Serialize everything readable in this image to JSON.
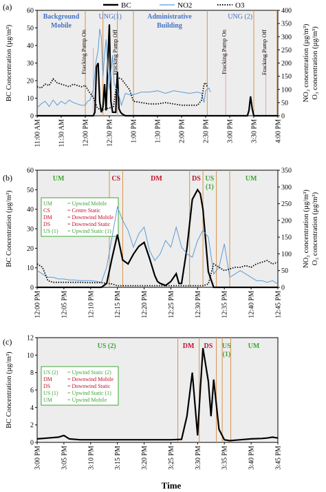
{
  "legend": [
    {
      "name": "BC",
      "color": "#000000",
      "style": "solid-thick"
    },
    {
      "name": "NO2",
      "color": "#5b9bd5",
      "style": "solid-thin"
    },
    {
      "name": "O3",
      "color": "#000000",
      "style": "dotted"
    }
  ],
  "xlabel": "Time",
  "colors": {
    "bc": "#000000",
    "no2": "#5b9bd5",
    "o3": "#000000",
    "marker": "#d6914a",
    "pink_marker": "#e8a0b0",
    "green": "#3fa535",
    "red": "#c0122c",
    "blue": "#4472c4",
    "plot_bg": "#ededed"
  },
  "chart_data": [
    {
      "panel": "(a)",
      "type": "line",
      "ylabel": "BC Concentration (µg/m³)",
      "y2label_lines": [
        "NO₂ concentration (µg/m³)",
        "O₃ concentration (µg/m³)"
      ],
      "ylim": [
        0,
        60
      ],
      "yticks": [
        "0",
        "10",
        "20",
        "30",
        "40",
        "50",
        "60"
      ],
      "y2lim": [
        0,
        400
      ],
      "y2ticks": [
        "0",
        "50",
        "100",
        "150",
        "200",
        "250",
        "300",
        "350",
        "400"
      ],
      "xlim": [
        0,
        300
      ],
      "x_tick_labels": [
        "11:00 AM",
        "11:30 AM",
        "12:00 PM",
        "12:30 PM",
        "1:00 PM",
        "1:30 PM",
        "2:00 PM",
        "2:30 PM",
        "3:00 PM",
        "3:30 PM",
        "4:00 PM"
      ],
      "x_tick_values": [
        0,
        30,
        60,
        90,
        120,
        150,
        180,
        210,
        240,
        270,
        300
      ],
      "markers": [
        {
          "x": 60,
          "color": "orange"
        },
        {
          "x": 82,
          "color": "orange"
        },
        {
          "x": 100,
          "color": "orange"
        },
        {
          "x": 120,
          "color": "orange"
        },
        {
          "x": 212,
          "color": "orange"
        },
        {
          "x": 270,
          "color": "orange"
        },
        {
          "x": 299,
          "color": "orange"
        }
      ],
      "pink_markers": [
        {
          "x": 70
        },
        {
          "x": 100
        },
        {
          "x": 235
        },
        {
          "x": 285
        }
      ],
      "region_labels": [
        {
          "lines": [
            "Background",
            "Mobile"
          ],
          "x": 30,
          "color": "blue",
          "bold": true
        },
        {
          "lines": [
            "UNG(1)"
          ],
          "x": 91,
          "color": "blue",
          "bold": false
        },
        {
          "lines": [
            "Administrative",
            "Building"
          ],
          "x": 165,
          "color": "blue",
          "bold": true
        },
        {
          "lines": [
            "UNG (2)"
          ],
          "x": 253,
          "color": "blue",
          "bold": false
        }
      ],
      "annotations": [
        {
          "text": "Fracking Pump On",
          "x": 62
        },
        {
          "text": "Fracking Pump Off",
          "x": 101
        },
        {
          "text": "Fracking Pump On",
          "x": 237
        },
        {
          "text": "Fracking Pump Off",
          "x": 287
        }
      ],
      "series": [
        {
          "name": "BC",
          "axis": "left",
          "x": [
            0,
            55,
            60,
            65,
            70,
            72,
            74,
            76,
            78,
            80,
            82,
            84,
            86,
            88,
            90,
            92,
            94,
            96,
            98,
            100,
            102,
            104,
            106,
            110,
            115,
            200,
            240,
            262,
            264,
            266,
            268,
            270,
            275,
            300
          ],
          "y": [
            0,
            0,
            0,
            0,
            0,
            2,
            28,
            30,
            8,
            2,
            5,
            18,
            3,
            30,
            52,
            8,
            2,
            2,
            2,
            25,
            4,
            2,
            1,
            0,
            0,
            0,
            0,
            0,
            3,
            11,
            4,
            0,
            0,
            0
          ]
        },
        {
          "name": "NO2",
          "axis": "right",
          "x": [
            0,
            5,
            10,
            15,
            20,
            25,
            30,
            35,
            40,
            45,
            50,
            55,
            60,
            63,
            66,
            70,
            73,
            76,
            78,
            80,
            82,
            84,
            86,
            88,
            90,
            92,
            94,
            96,
            100,
            105,
            110,
            115,
            120,
            125,
            130,
            140,
            150,
            160,
            170,
            180,
            190,
            200,
            205,
            208,
            210,
            212,
            214,
            216
          ],
          "y": [
            30,
            45,
            55,
            35,
            60,
            40,
            55,
            45,
            60,
            50,
            45,
            40,
            40,
            55,
            60,
            100,
            200,
            250,
            330,
            300,
            150,
            230,
            290,
            180,
            100,
            170,
            230,
            120,
            100,
            40,
            85,
            80,
            80,
            85,
            90,
            90,
            95,
            85,
            95,
            90,
            85,
            90,
            85,
            50,
            95,
            100,
            105,
            90
          ]
        },
        {
          "name": "O3",
          "axis": "right",
          "x": [
            0,
            5,
            10,
            15,
            20,
            25,
            30,
            35,
            40,
            45,
            50,
            55,
            60,
            65,
            70,
            75,
            80,
            85,
            90,
            95,
            100,
            105,
            110,
            115,
            120,
            130,
            140,
            150,
            160,
            170,
            180,
            190,
            200,
            205,
            208,
            210,
            212
          ],
          "y": [
            110,
            105,
            120,
            115,
            140,
            125,
            120,
            115,
            110,
            120,
            115,
            110,
            115,
            90,
            70,
            30,
            20,
            25,
            30,
            30,
            145,
            140,
            120,
            100,
            55,
            50,
            45,
            45,
            50,
            45,
            40,
            40,
            40,
            60,
            120,
            125,
            110
          ]
        }
      ]
    },
    {
      "panel": "(b)",
      "type": "line",
      "ylabel": "BC Concentration (µg/m³)",
      "y2label_lines": [
        "NO₂ concentration (µg/m³)",
        "O₃ concentration (µg/m³)"
      ],
      "ylim": [
        0,
        60
      ],
      "yticks": [
        "0",
        "10",
        "20",
        "30",
        "40",
        "50",
        "60"
      ],
      "y2lim": [
        0,
        350
      ],
      "y2ticks": [
        "0",
        "50",
        "100",
        "150",
        "200",
        "250",
        "300",
        "350"
      ],
      "xlim": [
        0,
        45
      ],
      "x_tick_labels": [
        "12:00 PM",
        "12:05 PM",
        "12:10 PM",
        "12:15 PM",
        "12:20 PM",
        "12:25 PM",
        "12:30 PM",
        "12:35 PM",
        "12:40 PM",
        "12:45 PM"
      ],
      "x_tick_values": [
        0,
        5,
        10,
        15,
        20,
        25,
        30,
        35,
        40,
        45
      ],
      "markers": [
        {
          "x": 13.5
        },
        {
          "x": 16
        },
        {
          "x": 28.5
        },
        {
          "x": 31
        },
        {
          "x": 33.5
        },
        {
          "x": 36
        }
      ],
      "region_labels": [
        {
          "text": "UM",
          "x": 4,
          "color": "green"
        },
        {
          "text": "CS",
          "x": 14.75,
          "color": "red"
        },
        {
          "text": "DM",
          "x": 22.3,
          "color": "red"
        },
        {
          "text": "DS",
          "x": 29.75,
          "color": "red"
        },
        {
          "text": "US",
          "x": 32.25,
          "color": "green"
        },
        {
          "text": "(1)",
          "x": 32.25,
          "color": "green"
        },
        {
          "text": "UM",
          "x": 40,
          "color": "green"
        }
      ],
      "key_box": [
        {
          "abbr": "UM",
          "desc": "= Upwind Mobile",
          "color": "green"
        },
        {
          "abbr": "CS",
          "desc": "= Centre Static",
          "color": "red"
        },
        {
          "abbr": "DM",
          "desc": "= Downwind Mobile",
          "color": "red"
        },
        {
          "abbr": "DS",
          "desc": "= Downwind Static",
          "color": "red"
        },
        {
          "abbr": "US (1)",
          "desc": "= Upwind Static (1)",
          "color": "green"
        }
      ],
      "series": [
        {
          "name": "BC",
          "axis": "left",
          "x": [
            0,
            12,
            13,
            14,
            15,
            16,
            17,
            18,
            19,
            20,
            21,
            22,
            22.5,
            23,
            24,
            25,
            26,
            26.5,
            27,
            28,
            29,
            30,
            30.5,
            31,
            32,
            33,
            34,
            45
          ],
          "y": [
            0,
            0,
            2,
            15,
            27,
            14,
            12,
            17,
            21,
            23,
            15,
            6,
            3,
            2,
            1,
            3,
            7,
            2,
            2,
            20,
            45,
            50,
            48,
            40,
            8,
            0,
            0,
            0
          ]
        },
        {
          "name": "NO2",
          "axis": "right",
          "x": [
            0,
            1,
            2,
            3,
            4,
            5,
            6,
            7,
            8,
            9,
            10,
            11,
            12,
            13,
            14,
            15,
            16,
            17,
            18,
            19,
            20,
            21,
            22,
            23,
            24,
            25,
            26,
            27,
            28,
            29,
            30,
            31,
            32,
            33,
            34,
            35,
            36,
            37,
            38,
            39,
            40,
            41,
            42,
            43,
            44,
            45
          ],
          "y": [
            50,
            40,
            30,
            30,
            25,
            25,
            22,
            22,
            20,
            20,
            20,
            18,
            15,
            60,
            150,
            240,
            200,
            170,
            120,
            160,
            180,
            110,
            80,
            100,
            140,
            120,
            180,
            120,
            100,
            90,
            140,
            170,
            150,
            40,
            60,
            130,
            30,
            40,
            50,
            40,
            30,
            20,
            20,
            15,
            20,
            10
          ]
        },
        {
          "name": "O3",
          "axis": "right",
          "x": [
            0,
            1,
            2,
            3,
            5,
            8,
            10,
            12,
            13,
            14,
            15,
            16,
            18,
            20,
            22,
            24,
            26,
            27,
            28,
            29,
            30,
            31,
            32,
            33,
            34,
            35,
            36,
            37,
            38,
            39,
            40,
            41,
            42,
            43,
            44,
            45
          ],
          "y": [
            70,
            60,
            20,
            15,
            15,
            15,
            14,
            14,
            12,
            10,
            5,
            5,
            5,
            5,
            5,
            5,
            5,
            5,
            5,
            5,
            5,
            5,
            10,
            70,
            60,
            50,
            55,
            60,
            60,
            65,
            60,
            70,
            75,
            80,
            70,
            75
          ]
        }
      ]
    },
    {
      "panel": "(c)",
      "type": "line",
      "ylabel": "BC Concentration (µg/m³)",
      "ylim": [
        0,
        12
      ],
      "yticks": [
        "0",
        "2",
        "4",
        "6",
        "8",
        "10",
        "12"
      ],
      "xlim": [
        0,
        45
      ],
      "x_tick_labels": [
        "3:00 PM",
        "3:05 PM",
        "3:10 PM",
        "3:15 PM",
        "3:20 PM",
        "3:25 PM",
        "3:30 PM",
        "3:35 PM",
        "3:40 PM",
        "3:45 PM"
      ],
      "x_tick_values": [
        0,
        5,
        10,
        15,
        20,
        25,
        30,
        35,
        40,
        45
      ],
      "markers": [
        {
          "x": 26.3
        },
        {
          "x": 30.3
        },
        {
          "x": 33.5
        },
        {
          "x": 34.6
        },
        {
          "x": 36.2
        }
      ],
      "region_labels": [
        {
          "text": "US (2)",
          "x": 13,
          "color": "green"
        },
        {
          "text": "DM",
          "x": 28.3,
          "color": "red"
        },
        {
          "text": "DS",
          "x": 32,
          "color": "red"
        },
        {
          "text": "US",
          "x": 35.4,
          "color": "green"
        },
        {
          "text": "(1)",
          "x": 35.4,
          "color": "green"
        },
        {
          "text": "UM",
          "x": 40.5,
          "color": "green"
        }
      ],
      "key_box": [
        {
          "abbr": "US (2)",
          "desc": "= Upwind Static (2)",
          "color": "green"
        },
        {
          "abbr": "DM",
          "desc": "= Downwind Mobile",
          "color": "red"
        },
        {
          "abbr": "DS",
          "desc": "= Downwind Static",
          "color": "red"
        },
        {
          "abbr": "US (1)",
          "desc": "= Upwind Static (1)",
          "color": "green"
        },
        {
          "abbr": "UM",
          "desc": "= Upwind Mobile",
          "color": "green"
        }
      ],
      "series": [
        {
          "name": "BC",
          "axis": "left",
          "x": [
            0,
            2,
            4,
            5,
            6,
            8,
            10,
            15,
            20,
            25,
            27,
            28,
            29,
            30,
            30.5,
            31,
            32,
            32.5,
            33,
            34,
            35,
            36,
            38,
            40,
            42,
            43,
            44,
            45
          ],
          "y": [
            0.4,
            0.5,
            0.6,
            0.8,
            0.4,
            0.3,
            0.3,
            0.3,
            0.3,
            0.3,
            0.35,
            3,
            8,
            0.8,
            6,
            10.8,
            7,
            3,
            7.2,
            1.5,
            0.3,
            0.2,
            0.3,
            0.4,
            0.45,
            0.5,
            0.6,
            0.5
          ]
        }
      ]
    }
  ]
}
